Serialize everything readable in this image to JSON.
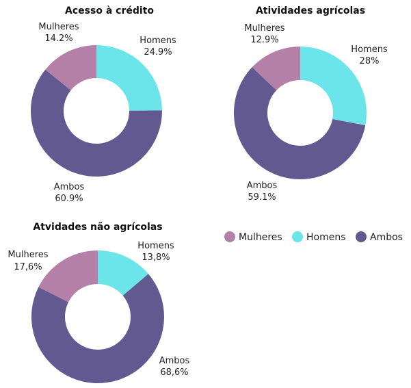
{
  "colors": {
    "Mulheres": "#b480a8",
    "Homens": "#6be5e9",
    "Ambos": "#625991"
  },
  "legend": {
    "items": [
      "Mulheres",
      "Homens",
      "Ambos"
    ],
    "placement": "right"
  },
  "chart_data": [
    {
      "type": "pie",
      "title": "Acesso à crédito",
      "categories": [
        "Homens",
        "Ambos",
        "Mulheres"
      ],
      "values": [
        24.9,
        60.9,
        14.2
      ],
      "value_labels": [
        "24.9%",
        "60.9%",
        "14.2%"
      ]
    },
    {
      "type": "pie",
      "title": "Atividades agrícolas",
      "categories": [
        "Homens",
        "Ambos",
        "Mulheres"
      ],
      "values": [
        28,
        59.1,
        12.9
      ],
      "value_labels": [
        "28%",
        "59.1%",
        "12.9%"
      ]
    },
    {
      "type": "pie",
      "title": "Atvidades não agrícolas",
      "categories": [
        "Homens",
        "Ambos",
        "Mulheres"
      ],
      "values": [
        13.8,
        68.6,
        17.6
      ],
      "value_labels": [
        "13,8%",
        "68,6%",
        "17,6%"
      ]
    }
  ]
}
